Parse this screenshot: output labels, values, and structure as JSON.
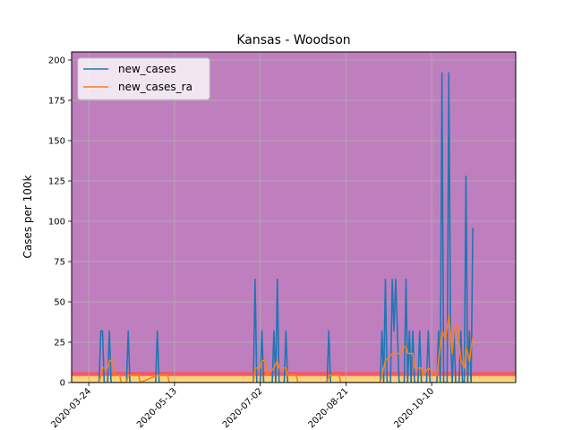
{
  "chart_data": {
    "type": "line",
    "title": "Kansas - Woodson",
    "xlabel": "",
    "ylabel": "Cases per 100k",
    "x_ticks": [
      "2020-03-24",
      "2020-05-13",
      "2020-07-02",
      "2020-08-21",
      "2020-10-10"
    ],
    "xlim": [
      "2020-03-14",
      "2020-11-28"
    ],
    "ylim": [
      0,
      205
    ],
    "y_ticks": [
      0,
      25,
      50,
      75,
      100,
      125,
      150,
      175,
      200
    ],
    "grid": true,
    "legend": "top-left",
    "background_bands": [
      {
        "from": 0,
        "to": 1,
        "color": "#fff27a"
      },
      {
        "from": 1,
        "to": 4,
        "color": "#ffd27a"
      },
      {
        "from": 4,
        "to": 7,
        "color": "#f05a6e"
      },
      {
        "from": 7,
        "to": 205,
        "color": "#bf7fbf"
      }
    ],
    "series": [
      {
        "name": "new_cases",
        "color": "#1f77b4",
        "points": [
          [
            "2020-03-14",
            0
          ],
          [
            "2020-03-30",
            0
          ],
          [
            "2020-03-31",
            32
          ],
          [
            "2020-04-01",
            32
          ],
          [
            "2020-04-02",
            0
          ],
          [
            "2020-04-04",
            0
          ],
          [
            "2020-04-05",
            32
          ],
          [
            "2020-04-06",
            0
          ],
          [
            "2020-04-15",
            0
          ],
          [
            "2020-04-16",
            32
          ],
          [
            "2020-04-17",
            0
          ],
          [
            "2020-05-02",
            0
          ],
          [
            "2020-05-03",
            32
          ],
          [
            "2020-05-04",
            0
          ],
          [
            "2020-06-28",
            0
          ],
          [
            "2020-06-29",
            64
          ],
          [
            "2020-06-30",
            0
          ],
          [
            "2020-07-02",
            0
          ],
          [
            "2020-07-03",
            32
          ],
          [
            "2020-07-04",
            0
          ],
          [
            "2020-07-09",
            0
          ],
          [
            "2020-07-10",
            32
          ],
          [
            "2020-07-11",
            0
          ],
          [
            "2020-07-12",
            64
          ],
          [
            "2020-07-13",
            0
          ],
          [
            "2020-07-16",
            0
          ],
          [
            "2020-07-17",
            32
          ],
          [
            "2020-07-18",
            0
          ],
          [
            "2020-08-10",
            0
          ],
          [
            "2020-08-11",
            32
          ],
          [
            "2020-08-12",
            0
          ],
          [
            "2020-09-10",
            0
          ],
          [
            "2020-09-11",
            32
          ],
          [
            "2020-09-12",
            0
          ],
          [
            "2020-09-13",
            64
          ],
          [
            "2020-09-14",
            0
          ],
          [
            "2020-09-16",
            0
          ],
          [
            "2020-09-17",
            64
          ],
          [
            "2020-09-18",
            32
          ],
          [
            "2020-09-19",
            64
          ],
          [
            "2020-09-20",
            32
          ],
          [
            "2020-09-21",
            0
          ],
          [
            "2020-09-24",
            0
          ],
          [
            "2020-09-25",
            64
          ],
          [
            "2020-09-26",
            0
          ],
          [
            "2020-09-27",
            32
          ],
          [
            "2020-09-28",
            0
          ],
          [
            "2020-09-29",
            32
          ],
          [
            "2020-09-30",
            0
          ],
          [
            "2020-10-02",
            0
          ],
          [
            "2020-10-03",
            32
          ],
          [
            "2020-10-04",
            0
          ],
          [
            "2020-10-07",
            0
          ],
          [
            "2020-10-08",
            32
          ],
          [
            "2020-10-09",
            0
          ],
          [
            "2020-10-13",
            0
          ],
          [
            "2020-10-14",
            32
          ],
          [
            "2020-10-15",
            0
          ],
          [
            "2020-10-16",
            192
          ],
          [
            "2020-10-17",
            0
          ],
          [
            "2020-10-19",
            0
          ],
          [
            "2020-10-20",
            192
          ],
          [
            "2020-10-21",
            32
          ],
          [
            "2020-10-22",
            0
          ],
          [
            "2020-10-23",
            32
          ],
          [
            "2020-10-24",
            0
          ],
          [
            "2020-10-26",
            0
          ],
          [
            "2020-10-27",
            32
          ],
          [
            "2020-10-28",
            0
          ],
          [
            "2020-10-29",
            0
          ],
          [
            "2020-10-30",
            128
          ],
          [
            "2020-10-31",
            0
          ],
          [
            "2020-11-01",
            32
          ],
          [
            "2020-11-02",
            0
          ],
          [
            "2020-11-03",
            96
          ]
        ]
      },
      {
        "name": "new_cases_ra",
        "color": "#ff7f0e",
        "points": [
          [
            "2020-03-14",
            0
          ],
          [
            "2020-03-30",
            0
          ],
          [
            "2020-03-31",
            4.5
          ],
          [
            "2020-04-01",
            9
          ],
          [
            "2020-04-04",
            9
          ],
          [
            "2020-04-05",
            13.5
          ],
          [
            "2020-04-07",
            13.5
          ],
          [
            "2020-04-08",
            4.5
          ],
          [
            "2020-04-11",
            4.5
          ],
          [
            "2020-04-12",
            0
          ],
          [
            "2020-04-15",
            0
          ],
          [
            "2020-04-16",
            4.5
          ],
          [
            "2020-04-22",
            4.5
          ],
          [
            "2020-04-23",
            0
          ],
          [
            "2020-05-03",
            4.5
          ],
          [
            "2020-05-09",
            4.5
          ],
          [
            "2020-05-10",
            0
          ],
          [
            "2020-06-28",
            0
          ],
          [
            "2020-06-29",
            9
          ],
          [
            "2020-07-02",
            9
          ],
          [
            "2020-07-03",
            13.5
          ],
          [
            "2020-07-05",
            13.5
          ],
          [
            "2020-07-06",
            4.5
          ],
          [
            "2020-07-10",
            9
          ],
          [
            "2020-07-12",
            13.5
          ],
          [
            "2020-07-13",
            9
          ],
          [
            "2020-07-17",
            9
          ],
          [
            "2020-07-18",
            4.5
          ],
          [
            "2020-07-23",
            4.5
          ],
          [
            "2020-07-24",
            0
          ],
          [
            "2020-08-10",
            0
          ],
          [
            "2020-08-11",
            4.5
          ],
          [
            "2020-08-17",
            4.5
          ],
          [
            "2020-08-18",
            0
          ],
          [
            "2020-09-10",
            0
          ],
          [
            "2020-09-11",
            4.5
          ],
          [
            "2020-09-13",
            13.5
          ],
          [
            "2020-09-17",
            18
          ],
          [
            "2020-09-22",
            18
          ],
          [
            "2020-09-23",
            22
          ],
          [
            "2020-09-25",
            22
          ],
          [
            "2020-09-26",
            18
          ],
          [
            "2020-09-29",
            18
          ],
          [
            "2020-09-30",
            9
          ],
          [
            "2020-10-04",
            9
          ],
          [
            "2020-10-05",
            4.5
          ],
          [
            "2020-10-08",
            9
          ],
          [
            "2020-10-13",
            4.5
          ],
          [
            "2020-10-16",
            32
          ],
          [
            "2020-10-18",
            27
          ],
          [
            "2020-10-20",
            41
          ],
          [
            "2020-10-22",
            18
          ],
          [
            "2020-10-23",
            32
          ],
          [
            "2020-10-25",
            36
          ],
          [
            "2020-10-27",
            14
          ],
          [
            "2020-10-29",
            9
          ],
          [
            "2020-10-30",
            22
          ],
          [
            "2020-10-31",
            18
          ],
          [
            "2020-11-01",
            13
          ],
          [
            "2020-11-02",
            22
          ],
          [
            "2020-11-03",
            28
          ]
        ]
      }
    ]
  }
}
